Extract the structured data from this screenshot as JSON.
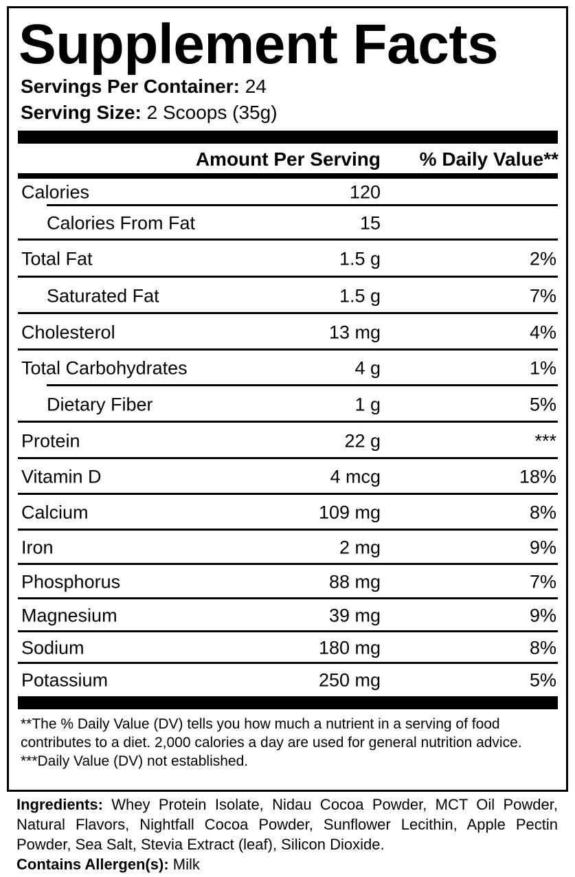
{
  "title": "Supplement Facts",
  "servings_per_container": {
    "label": "Servings Per Container:",
    "value": "24"
  },
  "serving_size": {
    "label": "Serving Size:",
    "value": "2 Scoops (35g)"
  },
  "header": {
    "amount": "Amount Per Serving",
    "dv": "% Daily Value**"
  },
  "rows": [
    {
      "label": "Calories",
      "amount": "120",
      "dv": "",
      "indent": false
    },
    {
      "label": "Calories From Fat",
      "amount": "15",
      "dv": "",
      "indent": true
    },
    {
      "label": "Total Fat",
      "amount": "1.5 g",
      "dv": "2%",
      "indent": false
    },
    {
      "label": "Saturated Fat",
      "amount": "1.5 g",
      "dv": "7%",
      "indent": true
    },
    {
      "label": "Cholesterol",
      "amount": "13 mg",
      "dv": "4%",
      "indent": false
    },
    {
      "label": "Total Carbohydrates",
      "amount": "4 g",
      "dv": "1%",
      "indent": false
    },
    {
      "label": "Dietary Fiber",
      "amount": "1 g",
      "dv": "5%",
      "indent": true
    },
    {
      "label": "Protein",
      "amount": "22 g",
      "dv": "***",
      "indent": false
    },
    {
      "label": "Vitamin D",
      "amount": "4 mcg",
      "dv": "18%",
      "indent": false
    },
    {
      "label": "Calcium",
      "amount": "109 mg",
      "dv": "8%",
      "indent": false
    },
    {
      "label": "Iron",
      "amount": "2 mg",
      "dv": "9%",
      "indent": false
    },
    {
      "label": "Phosphorus",
      "amount": "88 mg",
      "dv": "7%",
      "indent": false
    },
    {
      "label": "Magnesium",
      "amount": "39 mg",
      "dv": "9%",
      "indent": false
    },
    {
      "label": "Sodium",
      "amount": "180 mg",
      "dv": "8%",
      "indent": false
    },
    {
      "label": "Potassium",
      "amount": "250 mg",
      "dv": "5%",
      "indent": false
    }
  ],
  "footnotes": {
    "dv_note": "**The % Daily Value (DV) tells you how much a nutrient in a serving of food contributes to a diet. 2,000 calories a day are used for general nutrition advice.",
    "not_established": "***Daily Value (DV) not established."
  },
  "ingredients": {
    "label": "Ingredients:",
    "text": "Whey Protein Isolate, Nidau Cocoa Powder, MCT Oil Powder, Natural Flavors, Nightfall Cocoa Powder, Sunflower Lecithin, Apple Pectin Powder, Sea Salt, Stevia Extract (leaf), Silicon Dioxide."
  },
  "allergens": {
    "label": "Contains Allergen(s):",
    "text": "Milk"
  }
}
